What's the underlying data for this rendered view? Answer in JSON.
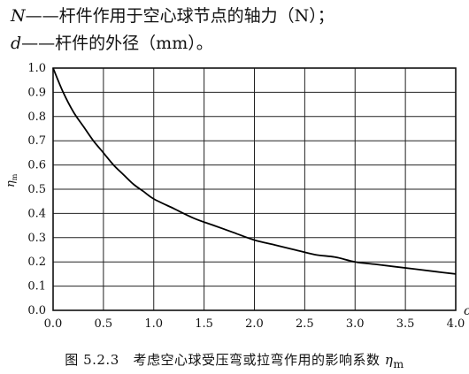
{
  "definitions": [
    {
      "symbol": "N",
      "dash": "——",
      "text": "杆件作用于空心球节点的轴力（N）；"
    },
    {
      "symbol": "d",
      "dash": "——",
      "text": "杆件的外径（mm）。"
    }
  ],
  "caption": {
    "prefix": "图 5.2.3",
    "text": "考虑空心球受压弯或拉弯作用的影响系数",
    "symbol": "η",
    "subscript": "m"
  },
  "chart_data": {
    "type": "line",
    "xlabel": "c",
    "ylabel": "η",
    "ylabel_sub": "m",
    "xlim": [
      0.0,
      4.0
    ],
    "ylim": [
      0.0,
      1.0
    ],
    "xticks": [
      "0.0",
      "0.5",
      "1.0",
      "1.5",
      "2.0",
      "2.5",
      "3.0",
      "3.5",
      "4.0"
    ],
    "yticks": [
      "0.0",
      "0.1",
      "0.2",
      "0.3",
      "0.4",
      "0.5",
      "0.6",
      "0.7",
      "0.8",
      "0.9",
      "1.0"
    ],
    "grid": true,
    "series": [
      {
        "x": [
          0.0,
          0.1,
          0.2,
          0.3,
          0.4,
          0.5,
          0.6,
          0.7,
          0.8,
          0.9,
          1.0,
          1.2,
          1.4,
          1.6,
          1.8,
          2.0,
          2.2,
          2.4,
          2.6,
          2.8,
          3.0,
          3.2,
          3.4,
          3.6,
          3.8,
          4.0
        ],
        "y": [
          1.0,
          0.9,
          0.82,
          0.76,
          0.7,
          0.65,
          0.6,
          0.56,
          0.52,
          0.49,
          0.46,
          0.42,
          0.38,
          0.35,
          0.32,
          0.29,
          0.27,
          0.25,
          0.23,
          0.22,
          0.2,
          0.19,
          0.18,
          0.17,
          0.16,
          0.15
        ]
      }
    ]
  }
}
